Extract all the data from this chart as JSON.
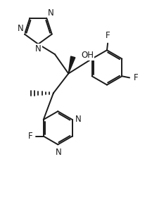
{
  "background": "#ffffff",
  "line_color": "#1a1a1a",
  "lw": 1.4,
  "fs": 8.5,
  "xlim": [
    0,
    10
  ],
  "ylim": [
    0,
    13.5
  ]
}
